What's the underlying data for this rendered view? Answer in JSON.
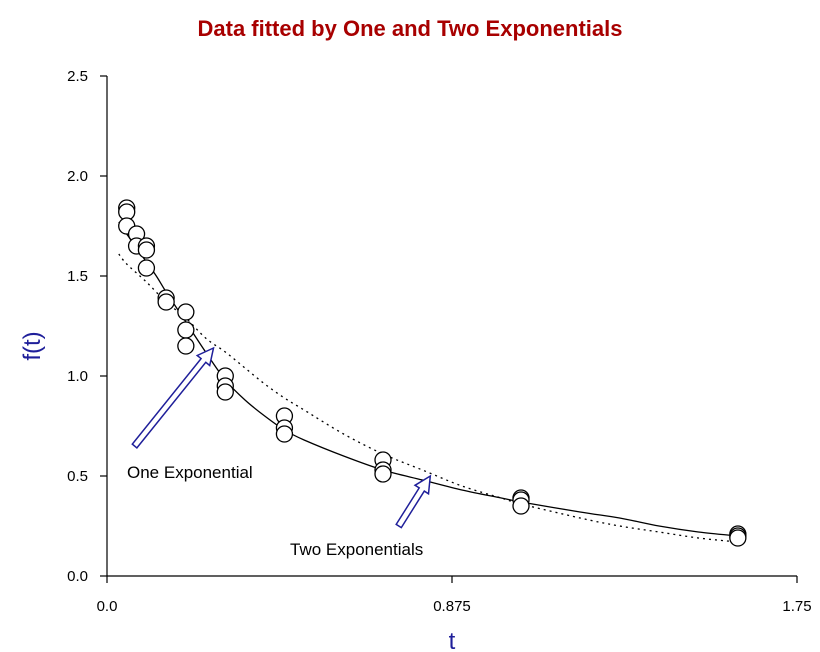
{
  "colors": {
    "title": "#a80000",
    "axis_title": "#1f1f9a",
    "arrow": "#1f1f9a",
    "axis": "#000000"
  },
  "chart_data": {
    "type": "scatter",
    "title": "Data fitted by One and Two Exponentials",
    "xlabel": "t",
    "ylabel": "f(t)",
    "xlim": [
      0,
      1.75
    ],
    "ylim": [
      0,
      2.5
    ],
    "xticks": [
      "0.0",
      "0.875",
      "1.75"
    ],
    "yticks": [
      "0.0",
      "0.5",
      "1.0",
      "1.5",
      "2.0",
      "2.5"
    ],
    "grid": false,
    "points": [
      {
        "x": 0.05,
        "y": 1.84
      },
      {
        "x": 0.05,
        "y": 1.82
      },
      {
        "x": 0.05,
        "y": 1.75
      },
      {
        "x": 0.075,
        "y": 1.71
      },
      {
        "x": 0.075,
        "y": 1.65
      },
      {
        "x": 0.1,
        "y": 1.65
      },
      {
        "x": 0.1,
        "y": 1.63
      },
      {
        "x": 0.1,
        "y": 1.54
      },
      {
        "x": 0.15,
        "y": 1.39
      },
      {
        "x": 0.15,
        "y": 1.37
      },
      {
        "x": 0.2,
        "y": 1.32
      },
      {
        "x": 0.2,
        "y": 1.23
      },
      {
        "x": 0.2,
        "y": 1.15
      },
      {
        "x": 0.3,
        "y": 1.0
      },
      {
        "x": 0.3,
        "y": 0.95
      },
      {
        "x": 0.3,
        "y": 0.92
      },
      {
        "x": 0.45,
        "y": 0.8
      },
      {
        "x": 0.45,
        "y": 0.74
      },
      {
        "x": 0.45,
        "y": 0.71
      },
      {
        "x": 0.7,
        "y": 0.58
      },
      {
        "x": 0.7,
        "y": 0.53
      },
      {
        "x": 0.7,
        "y": 0.51
      },
      {
        "x": 1.05,
        "y": 0.39
      },
      {
        "x": 1.05,
        "y": 0.38
      },
      {
        "x": 1.05,
        "y": 0.35
      },
      {
        "x": 1.6,
        "y": 0.21
      },
      {
        "x": 1.6,
        "y": 0.2
      },
      {
        "x": 1.6,
        "y": 0.19
      }
    ],
    "series": [
      {
        "name": "Two Exponentials",
        "style": "solid",
        "x": [
          0.03,
          0.05,
          0.075,
          0.1,
          0.125,
          0.15,
          0.2,
          0.25,
          0.3,
          0.35,
          0.4,
          0.45,
          0.5,
          0.6,
          0.7,
          0.8,
          0.9,
          1.0,
          1.05,
          1.2,
          1.3,
          1.4,
          1.5,
          1.6
        ],
        "y": [
          1.77,
          1.71,
          1.64,
          1.57,
          1.5,
          1.42,
          1.27,
          1.12,
          0.98,
          0.88,
          0.8,
          0.73,
          0.68,
          0.6,
          0.53,
          0.48,
          0.43,
          0.39,
          0.37,
          0.32,
          0.29,
          0.25,
          0.22,
          0.2
        ]
      },
      {
        "name": "One Exponential",
        "style": "dotted",
        "x": [
          0.03,
          0.05,
          0.1,
          0.15,
          0.2,
          0.25,
          0.3,
          0.35,
          0.4,
          0.45,
          0.5,
          0.6,
          0.7,
          0.8,
          0.9,
          1.0,
          1.05,
          1.2,
          1.3,
          1.4,
          1.5,
          1.6
        ],
        "y": [
          1.61,
          1.56,
          1.47,
          1.37,
          1.29,
          1.19,
          1.12,
          1.04,
          0.96,
          0.89,
          0.83,
          0.71,
          0.61,
          0.53,
          0.45,
          0.39,
          0.36,
          0.29,
          0.25,
          0.22,
          0.19,
          0.17
        ]
      }
    ],
    "annotations": [
      {
        "text": "One Exponential",
        "arrow_from": [
          0.07,
          0.65
        ],
        "arrow_to": [
          0.27,
          1.14
        ]
      },
      {
        "text": "Two Exponentials",
        "arrow_from": [
          0.74,
          0.25
        ],
        "arrow_to": [
          0.82,
          0.5
        ]
      }
    ]
  }
}
